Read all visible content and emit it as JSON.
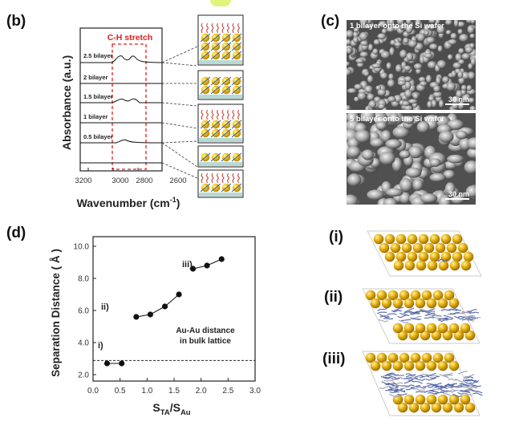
{
  "figure": {
    "panel_b": {
      "letter": "(b)",
      "region_label": "C-H stretch",
      "ylabel": "Absorbance (a.u.)",
      "xlabel": "Wavenumber (cm",
      "xlabel_sup": "-1",
      "xlabel_close": ")",
      "xticks": [
        "3200",
        "3000",
        "2800",
        "2600"
      ],
      "traces": [
        "2.5 bilayer",
        "2 bilayer",
        "1.5 bilayer",
        "1 bilayer",
        "0.5 bilayer"
      ]
    },
    "panel_c": {
      "letter": "(c)",
      "top_caption": "1 bilayer onto the Si wafer",
      "bottom_caption": "5 bilayer onto the Si wafer",
      "scale_label": "30 nm"
    },
    "panel_d": {
      "letter": "(d)",
      "ylabel": "Separation Distance ( Å )",
      "xlabel_main": "S",
      "xlabel_sub1": "TA",
      "xlabel_mid": "/S",
      "xlabel_sub2": "Au",
      "ref_label_line1": "Au-Au distance",
      "ref_label_line2": "in bulk lattice",
      "point_labels": [
        "i)",
        "ii)",
        "iii)"
      ]
    },
    "panel_structures": {
      "labels": [
        "(i)",
        "(ii)",
        "(iii)"
      ]
    }
  },
  "chart_data": [
    {
      "type": "line",
      "title": "",
      "xlabel": "Wavenumber (cm-1)",
      "ylabel": "Absorbance (a.u.)",
      "xlim": [
        3200,
        2600
      ],
      "x_reversed": true,
      "annotations": [
        "C-H stretch"
      ],
      "series": [
        {
          "name": "2.5 bilayer"
        },
        {
          "name": "2 bilayer"
        },
        {
          "name": "1.5 bilayer"
        },
        {
          "name": "1 bilayer"
        },
        {
          "name": "0.5 bilayer"
        }
      ]
    },
    {
      "type": "scatter",
      "title": "",
      "xlabel": "STA/SAu",
      "ylabel": "Separation Distance (Å)",
      "xlim": [
        0.0,
        3.0
      ],
      "ylim": [
        1.6,
        10.6
      ],
      "xticks": [
        "0.0",
        "0.5",
        "1.0",
        "1.5",
        "2.0",
        "2.5",
        "3.0"
      ],
      "yticks": [
        "2.0",
        "4.0",
        "6.0",
        "8.0",
        "10.0"
      ],
      "reference_line": {
        "y": 2.88,
        "label": "Au-Au distance in bulk lattice"
      },
      "series": [
        {
          "name": "i)",
          "x": [
            0.26,
            0.53
          ],
          "y": [
            2.7,
            2.7
          ]
        },
        {
          "name": "ii)",
          "x": [
            0.8,
            1.06,
            1.33,
            1.59
          ],
          "y": [
            5.6,
            5.75,
            6.25,
            7.0
          ]
        },
        {
          "name": "iii)",
          "x": [
            1.85,
            2.11,
            2.38
          ],
          "y": [
            8.6,
            8.8,
            9.2
          ]
        }
      ],
      "grid": false
    }
  ]
}
